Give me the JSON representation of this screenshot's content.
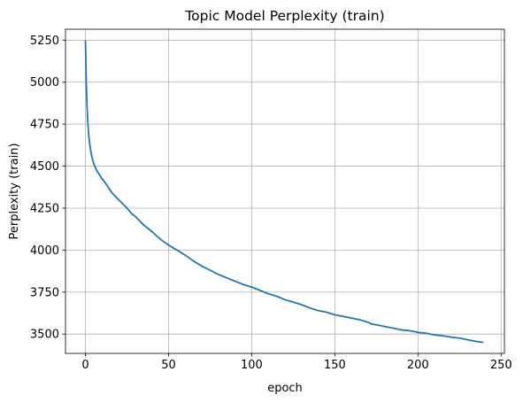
{
  "chart_data": {
    "type": "line",
    "title": "Topic Model Perplexity (train)",
    "xlabel": "epoch",
    "ylabel": "Perplexity (train)",
    "xlim": [
      -12,
      252
    ],
    "ylim": [
      3385,
      5315
    ],
    "xticks": [
      0,
      50,
      100,
      150,
      200,
      250
    ],
    "yticks": [
      3500,
      3750,
      4000,
      4250,
      4500,
      4750,
      5000,
      5250
    ],
    "grid": true,
    "series": [
      {
        "color": "#1f77b4",
        "x": [
          0,
          0.5,
          1,
          1.5,
          2,
          2.5,
          3,
          4,
          5,
          6,
          7,
          8,
          9,
          10,
          12,
          14,
          16,
          18,
          20,
          22,
          25,
          28,
          30,
          35,
          40,
          45,
          50,
          55,
          60,
          65,
          70,
          75,
          80,
          85,
          90,
          95,
          100,
          105,
          110,
          115,
          120,
          125,
          130,
          135,
          140,
          145,
          150,
          155,
          160,
          165,
          170,
          172,
          175,
          180,
          185,
          190,
          195,
          200,
          205,
          210,
          215,
          220,
          225,
          230,
          235,
          239
        ],
        "y": [
          5245,
          5000,
          4850,
          4750,
          4680,
          4640,
          4600,
          4550,
          4515,
          4490,
          4470,
          4455,
          4440,
          4425,
          4400,
          4370,
          4340,
          4320,
          4300,
          4280,
          4250,
          4215,
          4200,
          4150,
          4110,
          4065,
          4030,
          4000,
          3970,
          3935,
          3905,
          3880,
          3855,
          3835,
          3815,
          3795,
          3780,
          3760,
          3740,
          3725,
          3705,
          3690,
          3675,
          3655,
          3640,
          3630,
          3615,
          3605,
          3595,
          3585,
          3570,
          3560,
          3555,
          3545,
          3535,
          3525,
          3520,
          3510,
          3505,
          3495,
          3490,
          3482,
          3476,
          3466,
          3456,
          3451
        ]
      }
    ]
  }
}
